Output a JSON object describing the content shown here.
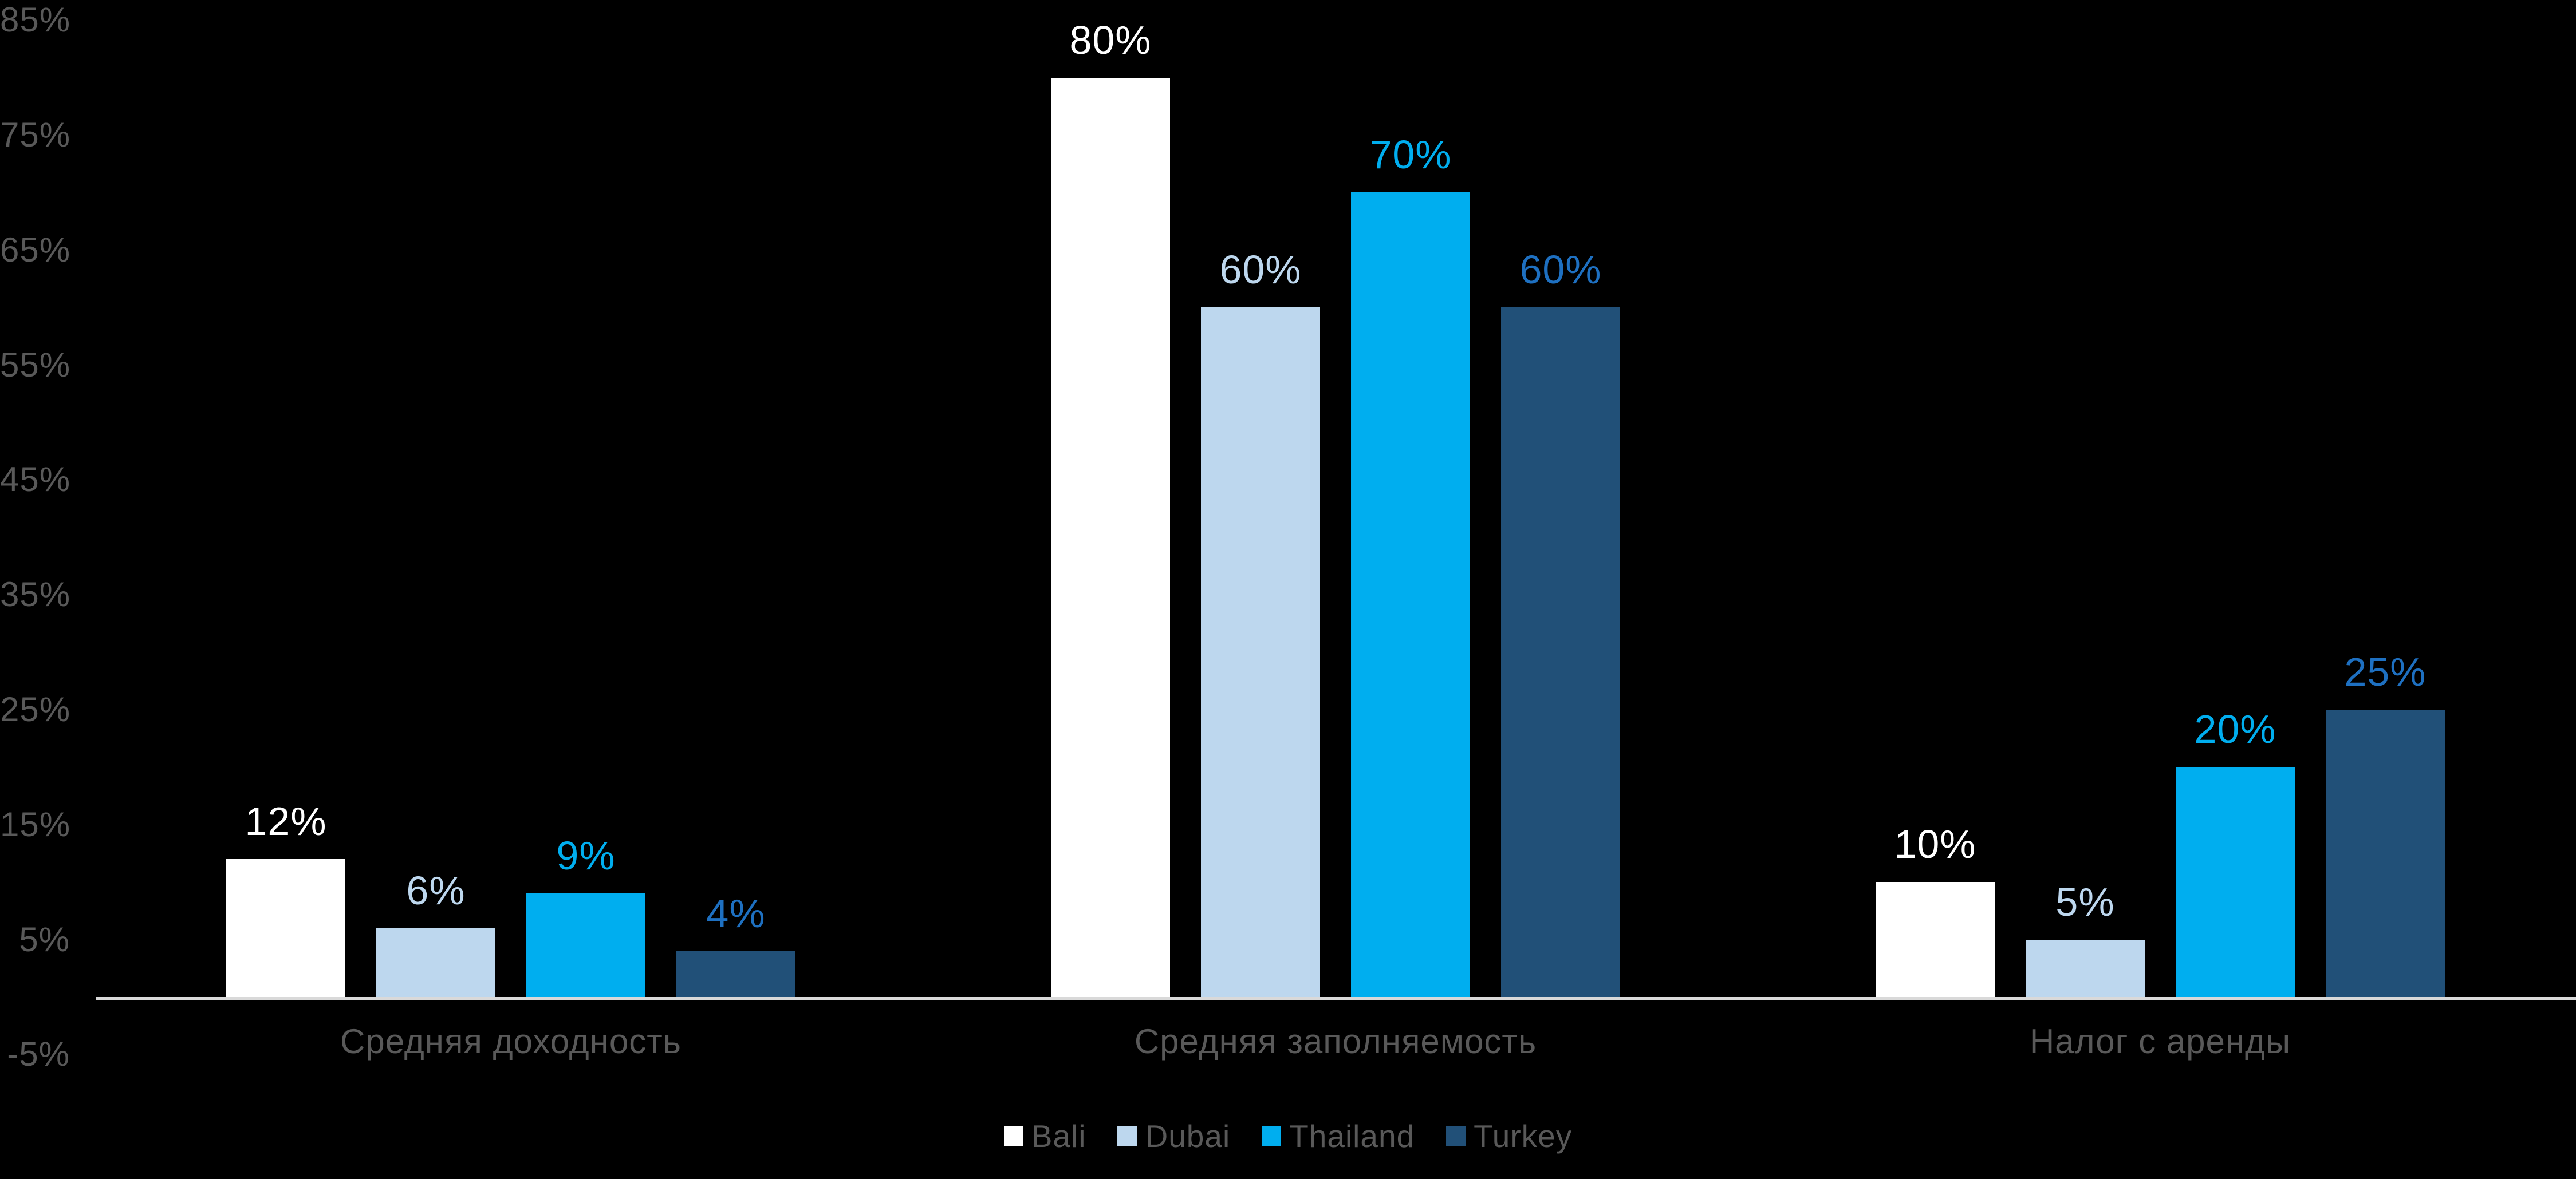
{
  "chart_data": {
    "type": "bar",
    "title": "",
    "categories": [
      "Средняя доходность",
      "Средняя заполняемость",
      "Налог с аренды"
    ],
    "series": [
      {
        "name": "Bali",
        "color": "#ffffff",
        "label_color": "#ffffff",
        "values": [
          12,
          80,
          10
        ]
      },
      {
        "name": "Dubai",
        "color": "#bdd7ee",
        "label_color": "#bdd7ee",
        "values": [
          6,
          60,
          5
        ]
      },
      {
        "name": "Thailand",
        "color": "#00aeef",
        "label_color": "#00aeef",
        "values": [
          9,
          70,
          20
        ]
      },
      {
        "name": "Turkey",
        "color": "#215078",
        "label_color": "#1e70c1",
        "values": [
          4,
          60,
          25
        ]
      }
    ],
    "value_labels": [
      [
        "12%",
        "80%",
        "10%"
      ],
      [
        "6%",
        "60%",
        "5%"
      ],
      [
        "9%",
        "70%",
        "20%"
      ],
      [
        "4%",
        "60%",
        "25%"
      ]
    ],
    "value_suffix": "%",
    "xlabel": "",
    "ylabel": "",
    "y_ticks": [
      "85%",
      "75%",
      "65%",
      "55%",
      "45%",
      "35%",
      "25%",
      "15%",
      "5%",
      "-5%"
    ],
    "y_tick_values": [
      85,
      75,
      65,
      55,
      45,
      35,
      25,
      15,
      5,
      -5
    ],
    "ylim": [
      -5,
      85
    ],
    "grid": false,
    "legend": [
      "Bali",
      "Dubai",
      "Thailand",
      "Turkey"
    ],
    "legend_position": "bottom",
    "background_color": "#000000",
    "axis_line_color": "#d9d9d9",
    "tick_text_color": "#595959",
    "category_text_color": "#595959",
    "legend_text_color": "#595959"
  }
}
